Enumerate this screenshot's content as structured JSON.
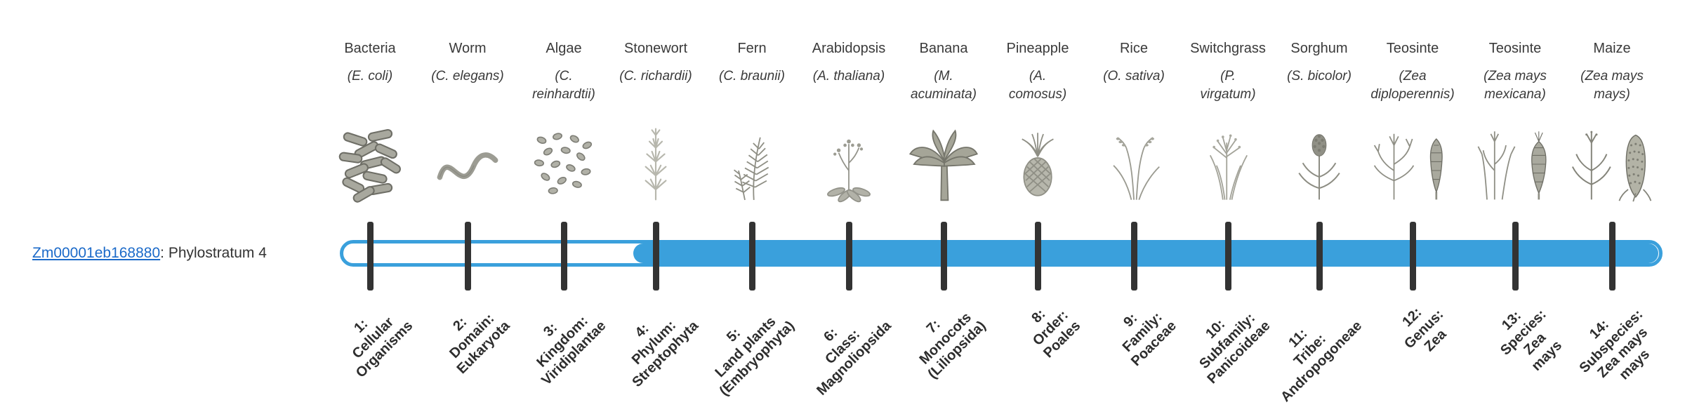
{
  "gene": {
    "id": "Zm00001eb168880",
    "suffix": ": Phylostratum 4"
  },
  "colors": {
    "bar": "#3AA0DC",
    "tick": "#333333",
    "link": "#1B6AC9",
    "text": "#3A3A3A"
  },
  "columns": [
    {
      "common": "Bacteria",
      "scientific": "(E. coli)",
      "icon": "bacteria-icon",
      "stratum_label": "1:\nCellular\nOrganisms"
    },
    {
      "common": "Worm",
      "scientific": "(C. elegans)",
      "icon": "worm-icon",
      "stratum_label": "2:\nDomain:\nEukaryota"
    },
    {
      "common": "Algae",
      "scientific": "(C.\nreinhardtii)",
      "icon": "algae-icon",
      "stratum_label": "3:\nKingdom:\nViridiplantae"
    },
    {
      "common": "Stonewort",
      "scientific": "(C. richardii)",
      "icon": "stonewort-icon",
      "stratum_label": "4:\nPhylum:\nStreptophyta"
    },
    {
      "common": "Fern",
      "scientific": "(C. braunii)",
      "icon": "fern-icon",
      "stratum_label": "5:\nLand plants\n(Embryophyta)"
    },
    {
      "common": "Arabidopsis",
      "scientific": "(A. thaliana)",
      "icon": "arabidopsis-icon",
      "stratum_label": "6:\nClass:\nMagnoliopsida"
    },
    {
      "common": "Banana",
      "scientific": "(M.\nacuminata)",
      "icon": "banana-icon",
      "stratum_label": "7:\nMonocots\n(Liliopsida)"
    },
    {
      "common": "Pineapple",
      "scientific": "(A.\ncomosus)",
      "icon": "pineapple-icon",
      "stratum_label": "8:\nOrder:\nPoales"
    },
    {
      "common": "Rice",
      "scientific": "(O. sativa)",
      "icon": "rice-icon",
      "stratum_label": "9:\nFamily:\nPoaceae"
    },
    {
      "common": "Switchgrass",
      "scientific": "(P.\nvirgatum)",
      "icon": "switchgrass-icon",
      "stratum_label": "10:\nSubfamily:\nPanicoideae"
    },
    {
      "common": "Sorghum",
      "scientific": "(S. bicolor)",
      "icon": "sorghum-icon",
      "stratum_label": "11:\nTribe:\nAndropogoneae"
    },
    {
      "common": "Teosinte",
      "scientific": "(Zea\ndiploperennis)",
      "icon": "teosinte-diploperennis-icon",
      "stratum_label": "12:\nGenus:\nZea"
    },
    {
      "common": "Teosinte",
      "scientific": "(Zea mays\nmexicana)",
      "icon": "teosinte-mexicana-icon",
      "stratum_label": "13:\nSpecies:\nZea\nmays"
    },
    {
      "common": "Maize",
      "scientific": "(Zea mays\nmays)",
      "icon": "maize-icon",
      "stratum_label": "14:\nSubspecies:\nZea mays\nmays"
    }
  ]
}
